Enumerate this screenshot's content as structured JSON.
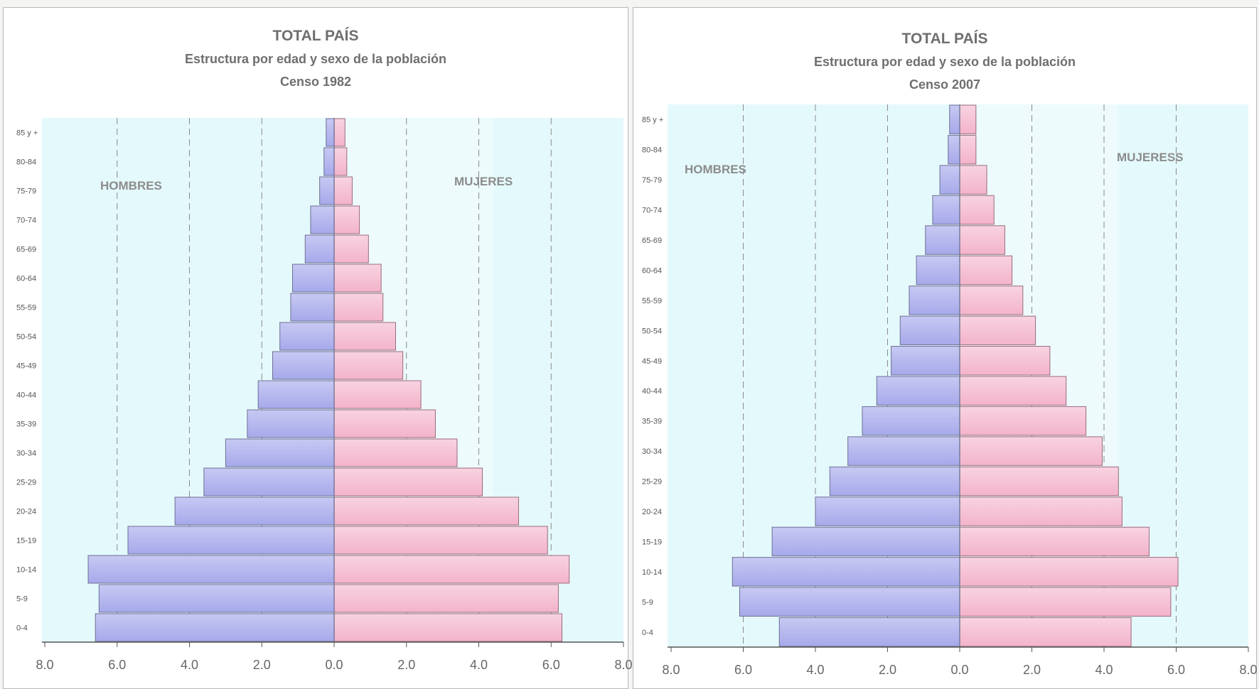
{
  "chart_data": [
    {
      "type": "bar",
      "title": "TOTAL PAÍS",
      "subtitle": "Estructura por edad y sexo de la población",
      "census": "Censo 1982",
      "categories": [
        "0-4",
        "5-9",
        "10-14",
        "15-19",
        "20-24",
        "25-29",
        "30-34",
        "35-39",
        "40-44",
        "45-49",
        "50-54",
        "55-59",
        "60-64",
        "65-69",
        "70-74",
        "75-79",
        "80-84",
        "85 y +"
      ],
      "series": [
        {
          "name": "HOMBRES",
          "color": "#a6a9ea",
          "values": [
            6.6,
            6.5,
            6.8,
            5.7,
            4.4,
            3.6,
            3.0,
            2.4,
            2.1,
            1.7,
            1.5,
            1.2,
            1.15,
            0.8,
            0.65,
            0.4,
            0.28,
            0.22
          ]
        },
        {
          "name": "MUJERES",
          "color": "#f3b3cb",
          "values": [
            6.3,
            6.2,
            6.5,
            5.9,
            5.1,
            4.1,
            3.4,
            2.8,
            2.4,
            1.9,
            1.7,
            1.35,
            1.3,
            0.95,
            0.7,
            0.5,
            0.35,
            0.3
          ]
        }
      ],
      "xticks": [
        "8.0",
        "6.0",
        "4.0",
        "2.0",
        "0.0",
        "2.0",
        "4.0",
        "6.0",
        "8.0"
      ],
      "xlim": [
        -8,
        8
      ],
      "grid_values": [
        6,
        4,
        2,
        2,
        4,
        6
      ]
    },
    {
      "type": "bar",
      "title": "TOTAL PAÍS",
      "subtitle": "Estructura por edad y sexo de la población",
      "census": "Censo 2007",
      "categories": [
        "0-4",
        "5-9",
        "10-14",
        "15-19",
        "20-24",
        "25-29",
        "30-34",
        "35-39",
        "40-44",
        "45-49",
        "50-54",
        "55-59",
        "60-64",
        "65-69",
        "70-74",
        "75-79",
        "80-84",
        "85 y +"
      ],
      "series": [
        {
          "name": "HOMBRES",
          "color": "#a6a9ea",
          "values": [
            5.0,
            6.1,
            6.3,
            5.2,
            4.0,
            3.6,
            3.1,
            2.7,
            2.3,
            1.9,
            1.65,
            1.4,
            1.2,
            0.95,
            0.75,
            0.55,
            0.32,
            0.28
          ]
        },
        {
          "name": "MUJERESS",
          "color": "#f3b3cb",
          "values": [
            4.75,
            5.85,
            6.05,
            5.25,
            4.5,
            4.4,
            3.95,
            3.5,
            2.95,
            2.5,
            2.1,
            1.75,
            1.45,
            1.25,
            0.95,
            0.75,
            0.45,
            0.45
          ]
        }
      ],
      "xticks": [
        "8.0",
        "6.0",
        "4.0",
        "2.0",
        "0.0",
        "2.0",
        "4.0",
        "6.0",
        "8.0"
      ],
      "xlim": [
        -8,
        8
      ],
      "grid_values": [
        6,
        4,
        2,
        2,
        4,
        6
      ]
    }
  ]
}
